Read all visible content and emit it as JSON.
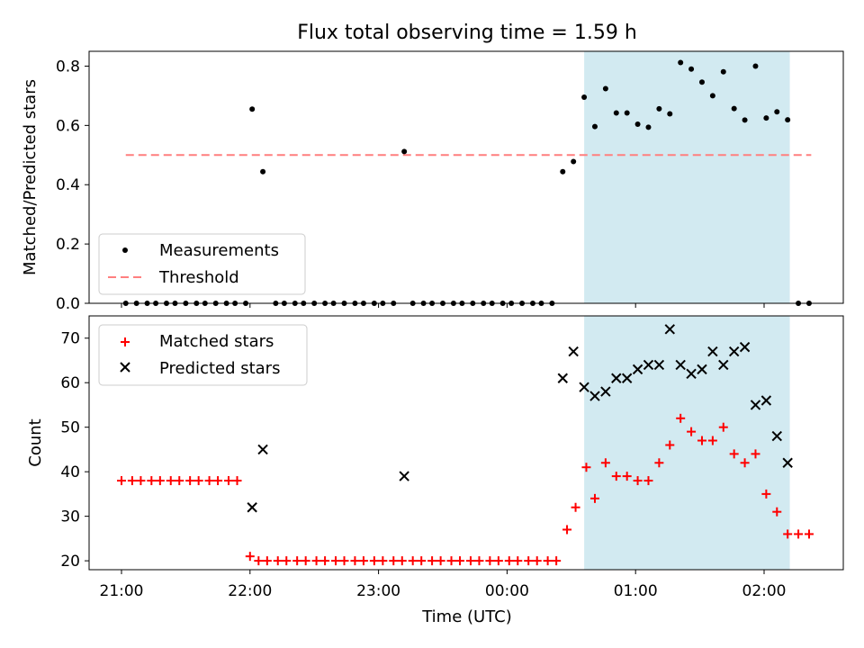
{
  "chart_data": [
    {
      "type": "scatter",
      "title": "Flux total observing time = 1.59 h",
      "ylabel": "Matched/Predicted stars",
      "ylim": [
        0,
        0.85
      ],
      "yticks": [
        0.0,
        0.2,
        0.4,
        0.6,
        0.8
      ],
      "ytick_labels": [
        "0.0",
        "0.2",
        "0.4",
        "0.6",
        "0.8"
      ],
      "shaded_region": {
        "start": "00:36",
        "end": "02:12",
        "color": "#add8e6"
      },
      "threshold": {
        "name": "Threshold",
        "value": 0.5,
        "start": "21:02",
        "end": "02:22",
        "color": "#ff7f7f"
      },
      "legend_position": "lower-left",
      "series": [
        {
          "name": "Measurements",
          "marker": "dot",
          "color": "#000000",
          "points": [
            [
              "21:02",
              0
            ],
            [
              "21:07",
              0
            ],
            [
              "21:12",
              0
            ],
            [
              "21:16",
              0
            ],
            [
              "21:21",
              0
            ],
            [
              "21:25",
              0
            ],
            [
              "21:30",
              0
            ],
            [
              "21:35",
              0
            ],
            [
              "21:39",
              0
            ],
            [
              "21:44",
              0
            ],
            [
              "21:49",
              0
            ],
            [
              "21:53",
              0
            ],
            [
              "21:58",
              0
            ],
            [
              "22:01",
              0.655
            ],
            [
              "22:06",
              0.444
            ],
            [
              "22:12",
              0
            ],
            [
              "22:16",
              0
            ],
            [
              "22:21",
              0
            ],
            [
              "22:25",
              0
            ],
            [
              "22:30",
              0
            ],
            [
              "22:35",
              0
            ],
            [
              "22:39",
              0
            ],
            [
              "22:44",
              0
            ],
            [
              "22:49",
              0
            ],
            [
              "22:53",
              0
            ],
            [
              "22:58",
              0
            ],
            [
              "23:02",
              0
            ],
            [
              "23:07",
              0
            ],
            [
              "23:12",
              0.512
            ],
            [
              "23:16",
              0
            ],
            [
              "23:21",
              0
            ],
            [
              "23:25",
              0
            ],
            [
              "23:30",
              0
            ],
            [
              "23:35",
              0
            ],
            [
              "23:39",
              0
            ],
            [
              "23:44",
              0
            ],
            [
              "23:49",
              0
            ],
            [
              "23:53",
              0
            ],
            [
              "23:58",
              0
            ],
            [
              "00:02",
              0
            ],
            [
              "00:07",
              0
            ],
            [
              "00:12",
              0
            ],
            [
              "00:16",
              0
            ],
            [
              "00:21",
              0
            ],
            [
              "00:26",
              0.444
            ],
            [
              "00:31",
              0.478
            ],
            [
              "00:36",
              0.695
            ],
            [
              "00:41",
              0.596
            ],
            [
              "00:46",
              0.724
            ],
            [
              "00:51",
              0.642
            ],
            [
              "00:56",
              0.642
            ],
            [
              "01:01",
              0.604
            ],
            [
              "01:06",
              0.594
            ],
            [
              "01:11",
              0.656
            ],
            [
              "01:16",
              0.639
            ],
            [
              "01:21",
              0.812
            ],
            [
              "01:26",
              0.79
            ],
            [
              "01:31",
              0.746
            ],
            [
              "01:36",
              0.7
            ],
            [
              "01:41",
              0.781
            ],
            [
              "01:46",
              0.657
            ],
            [
              "01:51",
              0.618
            ],
            [
              "01:56",
              0.8
            ],
            [
              "02:01",
              0.625
            ],
            [
              "02:06",
              0.646
            ],
            [
              "02:11",
              0.619
            ],
            [
              "02:16",
              0
            ],
            [
              "02:21",
              0
            ]
          ]
        }
      ]
    },
    {
      "type": "scatter",
      "xlabel": "Time (UTC)",
      "ylabel": "Count",
      "ylim": [
        18,
        75
      ],
      "yticks": [
        20,
        30,
        40,
        50,
        60,
        70
      ],
      "ytick_labels": [
        "20",
        "30",
        "40",
        "50",
        "60",
        "70"
      ],
      "x_ticks": [
        "21:00",
        "22:00",
        "23:00",
        "00:00",
        "01:00",
        "02:00"
      ],
      "x_tick_labels": [
        "21:00",
        "22:00",
        "23:00",
        "00:00",
        "01:00",
        "02:00"
      ],
      "shaded_region": {
        "start": "00:36",
        "end": "02:12",
        "color": "#add8e6"
      },
      "legend_position": "upper-left",
      "series": [
        {
          "name": "Matched stars",
          "marker": "plus",
          "color": "#ff0000",
          "points": [
            [
              "21:00",
              38
            ],
            [
              "21:05",
              38
            ],
            [
              "21:09",
              38
            ],
            [
              "21:14",
              38
            ],
            [
              "21:18",
              38
            ],
            [
              "21:23",
              38
            ],
            [
              "21:27",
              38
            ],
            [
              "21:32",
              38
            ],
            [
              "21:36",
              38
            ],
            [
              "21:41",
              38
            ],
            [
              "21:45",
              38
            ],
            [
              "21:50",
              38
            ],
            [
              "21:54",
              38
            ],
            [
              "22:00",
              21
            ],
            [
              "22:04",
              20
            ],
            [
              "22:08",
              20
            ],
            [
              "22:13",
              20
            ],
            [
              "22:17",
              20
            ],
            [
              "22:22",
              20
            ],
            [
              "22:26",
              20
            ],
            [
              "22:31",
              20
            ],
            [
              "22:35",
              20
            ],
            [
              "22:40",
              20
            ],
            [
              "22:44",
              20
            ],
            [
              "22:49",
              20
            ],
            [
              "22:53",
              20
            ],
            [
              "22:58",
              20
            ],
            [
              "23:02",
              20
            ],
            [
              "23:07",
              20
            ],
            [
              "23:11",
              20
            ],
            [
              "23:16",
              20
            ],
            [
              "23:20",
              20
            ],
            [
              "23:25",
              20
            ],
            [
              "23:29",
              20
            ],
            [
              "23:34",
              20
            ],
            [
              "23:38",
              20
            ],
            [
              "23:43",
              20
            ],
            [
              "23:47",
              20
            ],
            [
              "23:52",
              20
            ],
            [
              "23:56",
              20
            ],
            [
              "00:01",
              20
            ],
            [
              "00:05",
              20
            ],
            [
              "00:10",
              20
            ],
            [
              "00:14",
              20
            ],
            [
              "00:19",
              20
            ],
            [
              "00:23",
              20
            ],
            [
              "00:28",
              27
            ],
            [
              "00:32",
              32
            ],
            [
              "00:37",
              41
            ],
            [
              "00:41",
              34
            ],
            [
              "00:46",
              42
            ],
            [
              "00:51",
              39
            ],
            [
              "00:56",
              39
            ],
            [
              "01:01",
              38
            ],
            [
              "01:06",
              38
            ],
            [
              "01:11",
              42
            ],
            [
              "01:16",
              46
            ],
            [
              "01:21",
              52
            ],
            [
              "01:26",
              49
            ],
            [
              "01:31",
              47
            ],
            [
              "01:36",
              47
            ],
            [
              "01:41",
              50
            ],
            [
              "01:46",
              44
            ],
            [
              "01:51",
              42
            ],
            [
              "01:56",
              44
            ],
            [
              "02:01",
              35
            ],
            [
              "02:06",
              31
            ],
            [
              "02:11",
              26
            ],
            [
              "02:16",
              26
            ],
            [
              "02:21",
              26
            ]
          ]
        },
        {
          "name": "Predicted stars",
          "marker": "x",
          "color": "#000000",
          "points": [
            [
              "22:01",
              32
            ],
            [
              "22:06",
              45
            ],
            [
              "23:12",
              39
            ],
            [
              "00:26",
              61
            ],
            [
              "00:31",
              67
            ],
            [
              "00:36",
              59
            ],
            [
              "00:41",
              57
            ],
            [
              "00:46",
              58
            ],
            [
              "00:51",
              61
            ],
            [
              "00:56",
              61
            ],
            [
              "01:01",
              63
            ],
            [
              "01:06",
              64
            ],
            [
              "01:11",
              64
            ],
            [
              "01:16",
              72
            ],
            [
              "01:21",
              64
            ],
            [
              "01:26",
              62
            ],
            [
              "01:31",
              63
            ],
            [
              "01:36",
              67
            ],
            [
              "01:41",
              64
            ],
            [
              "01:46",
              67
            ],
            [
              "01:51",
              68
            ],
            [
              "01:56",
              55
            ],
            [
              "02:01",
              56
            ],
            [
              "02:06",
              48
            ],
            [
              "02:11",
              42
            ]
          ]
        }
      ]
    }
  ]
}
